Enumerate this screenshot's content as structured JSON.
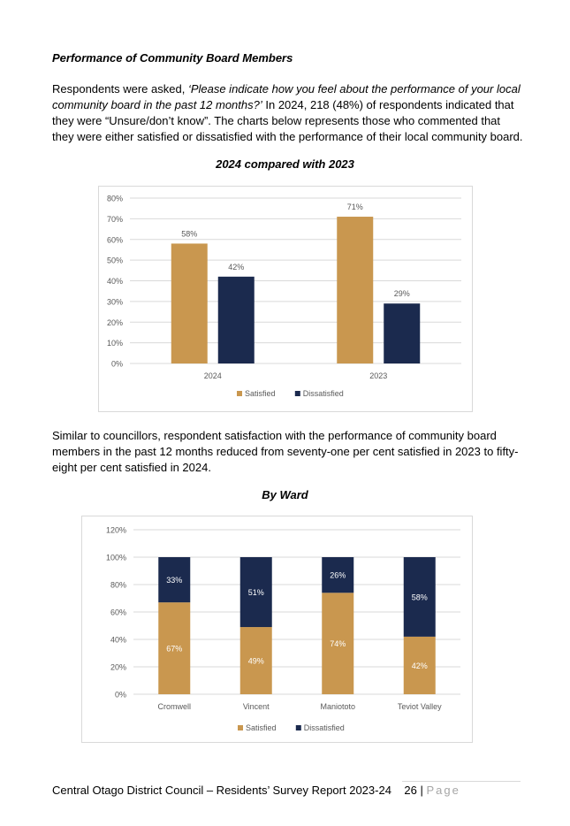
{
  "heading": "Performance of Community Board Members",
  "para1": {
    "intro": "Respondents were asked, ",
    "question": "‘Please indicate how you feel about the performance of your local community board in the past 12 months?’",
    "rest": "  In 2024, 218 (48%) of respondents indicated that they were “Unsure/don’t know”. The charts below represents those who commented that they were either satisfied or dissatisfied with the performance of their local community board."
  },
  "para2": "Similar to councillors, respondent satisfaction with the performance of community board members in the past 12 months reduced from seventy-one per cent satisfied in 2023 to fifty-eight per cent satisfied in 2024.",
  "chart_titles": [
    "2024 compared with 2023",
    "By Ward"
  ],
  "colors": {
    "satisfied": "#C9974F",
    "dissatisfied": "#1B2A4E",
    "grid": "#d9d9d9",
    "axis_text": "#595959"
  },
  "chart_data": [
    {
      "type": "bar",
      "title": "2024 compared with 2023",
      "categories": [
        "2024",
        "2023"
      ],
      "series": [
        {
          "name": "Satisfied",
          "values": [
            58,
            71
          ],
          "labels": [
            "58%",
            "71%"
          ]
        },
        {
          "name": "Dissatisfied",
          "values": [
            42,
            29
          ],
          "labels": [
            "42%",
            "29%"
          ]
        }
      ],
      "ylim": [
        0,
        80
      ],
      "yticks": [
        "0%",
        "10%",
        "20%",
        "30%",
        "40%",
        "50%",
        "60%",
        "70%",
        "80%"
      ],
      "grid": true,
      "legend": "bottom"
    },
    {
      "type": "bar",
      "stacked": true,
      "title": "By Ward",
      "categories": [
        "Cromwell",
        "Vincent",
        "Maniototo",
        "Teviot Valley"
      ],
      "series": [
        {
          "name": "Satisfied",
          "values": [
            67,
            49,
            74,
            42
          ],
          "labels": [
            "67%",
            "49%",
            "74%",
            "42%"
          ]
        },
        {
          "name": "Dissatisfied",
          "values": [
            33,
            51,
            26,
            58
          ],
          "labels": [
            "33%",
            "51%",
            "26%",
            "58%"
          ]
        }
      ],
      "ylim": [
        0,
        120
      ],
      "yticks": [
        "0%",
        "20%",
        "40%",
        "60%",
        "80%",
        "100%",
        "120%"
      ],
      "grid": true,
      "legend": "bottom"
    }
  ],
  "footer": {
    "text": "Central Otago District Council – Residents’ Survey Report 2023-24",
    "page_number": "26",
    "separator": "|",
    "page_word": "Page"
  }
}
